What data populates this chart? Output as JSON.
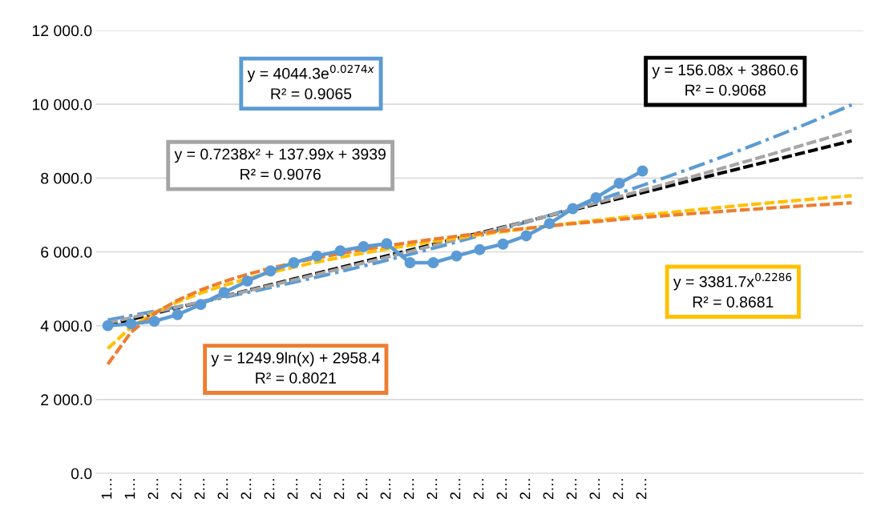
{
  "chart_data": {
    "type": "line",
    "categories": [
      "1…",
      "1…",
      "2…",
      "2…",
      "2…",
      "2…",
      "2…",
      "2…",
      "2…",
      "2…",
      "2…",
      "2…",
      "2…",
      "2…",
      "2…",
      "2…",
      "2…",
      "2…",
      "2…",
      "2…",
      "2…",
      "2…",
      "2…",
      "2…",
      null,
      null,
      null,
      null,
      null,
      null,
      null,
      null,
      null
    ],
    "series": [
      {
        "color": "#5b9bd5",
        "marker": "circle",
        "line_style": "solid",
        "values": [
          4000,
          4050,
          4121,
          4301,
          4575,
          4898,
          5210,
          5484,
          5707,
          5888,
          6031,
          6142,
          6222,
          5707,
          5707,
          5888,
          6061,
          6211,
          6435,
          6767,
          7172,
          7465,
          7858,
          8192,
          null,
          null,
          null,
          null,
          null,
          null,
          null,
          null,
          null
        ]
      },
      {
        "color": "#5b9bd5",
        "line_style": "dashdot",
        "values": [
          4157,
          4272,
          4391,
          4513,
          4638,
          4767,
          4899,
          5035,
          5175,
          5319,
          5466,
          5618,
          5774,
          5934,
          6099,
          6269,
          6443,
          6622,
          6805,
          6994,
          7189,
          7388,
          7593,
          7804,
          8021,
          8244,
          8473,
          8708,
          8950,
          9198,
          9454,
          9716,
          9986
        ]
      },
      {
        "color": "#000000",
        "line_style": "dashed",
        "values": [
          4017,
          4173,
          4329,
          4485,
          4641,
          4797,
          4953,
          5109,
          5265,
          5421,
          5578,
          5734,
          5890,
          6046,
          6202,
          6358,
          6514,
          6670,
          6826,
          6982,
          7138,
          7294,
          7450,
          7607,
          7763,
          7919,
          8075,
          8231,
          8387,
          8543,
          8699,
          8855,
          9011
        ]
      },
      {
        "color": "#a5a5a5",
        "line_style": "dashed",
        "values": [
          4078,
          4218,
          4360,
          4503,
          4647,
          4793,
          4940,
          5089,
          5240,
          5391,
          5545,
          5699,
          5855,
          6013,
          6172,
          6332,
          6494,
          6657,
          6822,
          6988,
          7156,
          7325,
          7496,
          7668,
          7841,
          8016,
          8192,
          8370,
          8549,
          8730,
          8912,
          9096,
          9281
        ]
      },
      {
        "color": "#ffc000",
        "line_style": "dashed",
        "values": [
          3382,
          3962,
          4347,
          4643,
          4886,
          5094,
          5276,
          5440,
          5588,
          5725,
          5851,
          5968,
          6078,
          6182,
          6281,
          6374,
          6463,
          6548,
          6629,
          6707,
          6783,
          6855,
          6925,
          6993,
          7059,
          7122,
          7184,
          7244,
          7302,
          7359,
          7414,
          7469,
          7521
        ]
      },
      {
        "color": "#ed7d31",
        "line_style": "dashed",
        "values": [
          2958,
          3825,
          4332,
          4691,
          4970,
          5198,
          5391,
          5557,
          5705,
          5836,
          5956,
          6064,
          6164,
          6257,
          6343,
          6424,
          6500,
          6571,
          6639,
          6703,
          6764,
          6822,
          6878,
          6931,
          6982,
          7031,
          7078,
          7123,
          7167,
          7210,
          7251,
          7290,
          7329
        ]
      }
    ],
    "annotations": [
      "y = 4044.3e$^{0.0274x}$\nR² = 0.9065",
      "y = 156.08x + 3860.6\nR² = 0.9068",
      "y = 0.7238x² + 137.99x + 3939\nR² = 0.9076",
      "y = 3381.7x$^{0.2286}$\nR² = 0.8681",
      "y = 1249.9ln(x) + 2958.4\nR² = 0.8021"
    ],
    "ylim": [
      0,
      12000
    ],
    "yticks": [
      {
        "value": 0,
        "label": "0.0"
      },
      {
        "value": 2000,
        "label": "2 000.0"
      },
      {
        "value": 4000,
        "label": "4 000.0"
      },
      {
        "value": 6000,
        "label": "6 000.0"
      },
      {
        "value": 8000,
        "label": "8 000.0"
      },
      {
        "value": 10000,
        "label": "10 000.0"
      },
      {
        "value": 12000,
        "label": "12 000.0"
      }
    ],
    "grid": "y",
    "legend": false
  }
}
